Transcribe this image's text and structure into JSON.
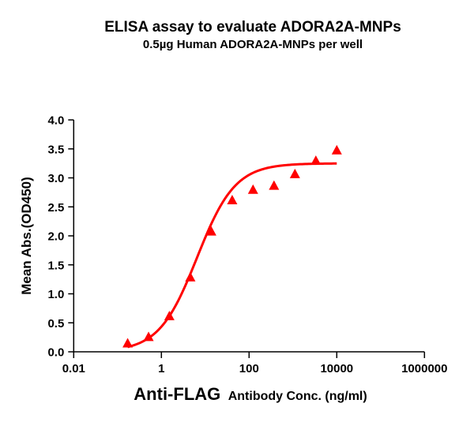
{
  "chart_data": {
    "type": "scatter",
    "title": "ELISA assay to evaluate ADORA2A-MNPs",
    "subtitle": "0.5µg Human ADORA2A-MNPs per well",
    "xlabel_main": "Anti-FLAG",
    "xlabel_rest": "Antibody Conc. (ng/ml)",
    "ylabel": "Mean Abs.(OD450)",
    "xscale": "log",
    "xlim": [
      0.01,
      1000000
    ],
    "ylim": [
      0,
      4.0
    ],
    "xticks": [
      "0.01",
      "1",
      "100",
      "10000",
      "1000000"
    ],
    "yticks": [
      "0.0",
      "0.5",
      "1.0",
      "1.5",
      "2.0",
      "2.5",
      "3.0",
      "3.5",
      "4.0"
    ],
    "grid": false,
    "marker": "triangle",
    "color": "#ff0000",
    "series": [
      {
        "name": "ADORA2A-MNPs",
        "x": [
          0.17,
          0.51,
          1.52,
          4.57,
          13.7,
          41.2,
          123,
          370,
          1111,
          3333,
          10000
        ],
        "y": [
          0.14,
          0.25,
          0.61,
          1.28,
          2.07,
          2.61,
          2.79,
          2.86,
          3.06,
          3.29,
          3.47
        ]
      }
    ],
    "fit": {
      "type": "4PL sigmoid",
      "bottom": 0.0,
      "top": 3.25,
      "ec50": 6.5,
      "hill": 1.0,
      "x_range": [
        0.17,
        10000
      ]
    }
  }
}
